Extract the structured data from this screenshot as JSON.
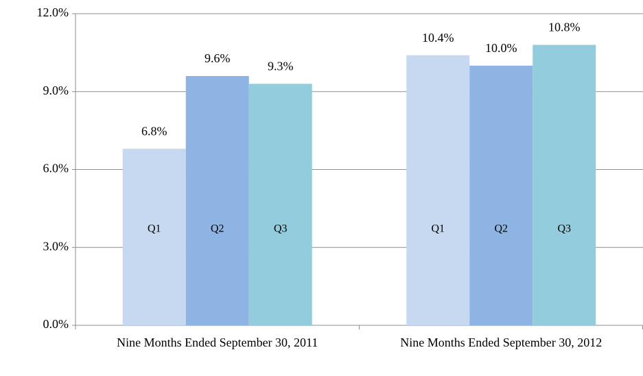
{
  "chart_data": {
    "type": "bar",
    "categories": [
      "Nine Months Ended September 30, 2011",
      "Nine Months Ended September 30, 2012"
    ],
    "series": [
      {
        "name": "Q1",
        "color": "#c6d9f1",
        "values": [
          6.8,
          10.4
        ],
        "value_labels": [
          "6.8%",
          "10.4%"
        ]
      },
      {
        "name": "Q2",
        "color": "#8eb4e3",
        "values": [
          9.6,
          10.0
        ],
        "value_labels": [
          "9.6%",
          "10.0%"
        ]
      },
      {
        "name": "Q3",
        "color": "#93cddd",
        "values": [
          9.3,
          10.8
        ],
        "value_labels": [
          "9.3%",
          "10.8%"
        ]
      }
    ],
    "ylim": [
      0,
      12
    ],
    "yticks": [
      {
        "value": 0,
        "label": "0.0%"
      },
      {
        "value": 3,
        "label": "3.0%"
      },
      {
        "value": 6,
        "label": "6.0%"
      },
      {
        "value": 9,
        "label": "9.0%"
      },
      {
        "value": 12,
        "label": "12.0%"
      }
    ],
    "grid": true
  }
}
